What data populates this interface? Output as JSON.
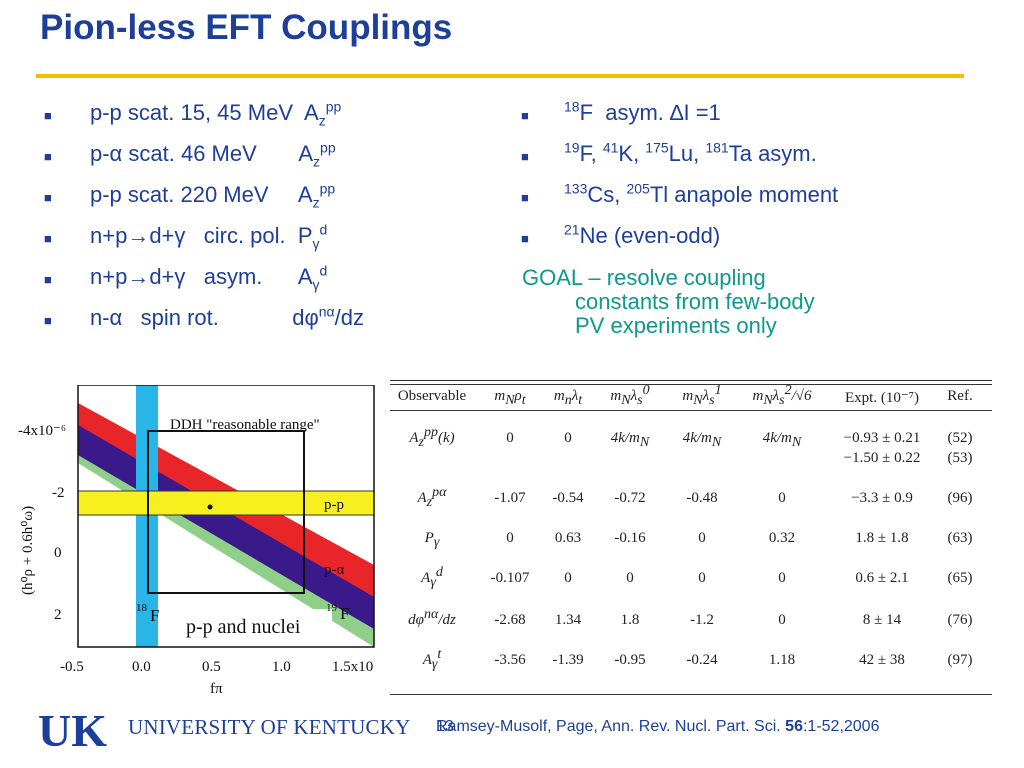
{
  "title": "Pion-less EFT Couplings",
  "left_items": [
    {
      "pre": "p-p scat. 15, 45 MeV  A",
      "sub": "z",
      "sup": "pp",
      "post": ""
    },
    {
      "pre": "p-α scat. 46 MeV       A",
      "sub": "z",
      "sup": "pp",
      "post": ""
    },
    {
      "pre": "p-p scat. 220 MeV     A",
      "sub": "z",
      "sup": "pp",
      "post": ""
    },
    {
      "pre": "n+p→d+γ   circ. pol.  P",
      "sub": "γ",
      "sup": "d",
      "post": ""
    },
    {
      "pre": "n+p→d+γ   asym.      A",
      "sub": "γ",
      "sup": "d",
      "post": ""
    },
    {
      "pre": "n-α   spin rot.            dφ",
      "sub": "",
      "sup": "nα",
      "post": "/dz"
    }
  ],
  "right_items": [
    {
      "html_parts": [
        {
          "sup": "18"
        },
        {
          "t": "F  asym. ∆I =1"
        }
      ]
    },
    {
      "html_parts": [
        {
          "sup": "19"
        },
        {
          "t": "F, "
        },
        {
          "sup": "41"
        },
        {
          "t": "K, "
        },
        {
          "sup": "175"
        },
        {
          "t": "Lu, "
        },
        {
          "sup": "181"
        },
        {
          "t": "Ta asym."
        }
      ]
    },
    {
      "html_parts": [
        {
          "sup": "133"
        },
        {
          "t": "Cs, "
        },
        {
          "sup": "205"
        },
        {
          "t": "Tl anapole moment"
        }
      ]
    },
    {
      "html_parts": [
        {
          "sup": "21"
        },
        {
          "t": "Ne (even-odd)"
        }
      ]
    }
  ],
  "bullet_glyph": "■",
  "goal": {
    "line1": "GOAL – resolve coupling",
    "line2": "constants from few-body",
    "line3": "PV experiments only"
  },
  "plot": {
    "box_label": "DDH \"reasonable range\"",
    "band_pp": "p-p",
    "band_pa": "p-α",
    "band_19f": "F",
    "band_19f_sup": "19",
    "band_18f": "F",
    "band_18f_sup": "18",
    "inset": "p-p and nuclei",
    "y_label": "(h⁰ρ + 0.6h⁰ω)",
    "y_ticks": [
      "-4x10⁻⁶",
      "-2",
      "0",
      "2"
    ],
    "x_ticks": [
      "-0.5",
      "0.0",
      "0.5",
      "1.0",
      "1.5x10"
    ],
    "x_label": "fπ"
  },
  "table": {
    "headers": [
      "Observable",
      "m_Nρ_t",
      "m_nλ_t",
      "m_Nλ_s^0",
      "m_Nλ_s^1",
      "m_Nλ_s^2/√6",
      "Expt. (10⁻⁷)",
      "Ref."
    ],
    "rows": [
      {
        "obs": "A_z^pp(k)",
        "c": [
          "0",
          "0",
          "4k/m_N",
          "4k/m_N",
          "4k/m_N"
        ],
        "expt": [
          "−0.93 ± 0.21",
          "−1.50 ± 0.22"
        ],
        "ref": [
          "(52)",
          "(53)"
        ]
      },
      {
        "obs": "A_z^pα",
        "c": [
          "-1.07",
          "-0.54",
          "-0.72",
          "-0.48",
          "0"
        ],
        "expt": [
          "−3.3 ± 0.9"
        ],
        "ref": [
          "(96)"
        ]
      },
      {
        "obs": "P_γ",
        "c": [
          "0",
          "0.63",
          "-0.16",
          "0",
          "0.32"
        ],
        "expt": [
          "1.8 ± 1.8"
        ],
        "ref": [
          "(63)"
        ]
      },
      {
        "obs": "A_γ^d",
        "c": [
          "-0.107",
          "0",
          "0",
          "0",
          "0"
        ],
        "expt": [
          "0.6 ± 2.1"
        ],
        "ref": [
          "(65)"
        ]
      },
      {
        "obs": "dφ^nα/dz",
        "c": [
          "-2.68",
          "1.34",
          "1.8",
          "-1.2",
          "0"
        ],
        "expt": [
          "8 ± 14"
        ],
        "ref": [
          "(76)"
        ]
      },
      {
        "obs": "A_γ^t",
        "c": [
          "-3.56",
          "-1.39",
          "-0.95",
          "-0.24",
          "1.18"
        ],
        "expt": [
          "42 ± 38"
        ],
        "ref": [
          "(97)"
        ]
      }
    ]
  },
  "footer": {
    "logo_text": "UK",
    "university": "UNIVERSITY OF KENTUCKY",
    "page_number": "13",
    "citation_pre": "Ramsey-Musolf, Page,  Ann. Rev. Nucl. Part. Sci. ",
    "citation_vol": "56",
    "citation_post": ":1-52,2006"
  },
  "colors": {
    "title": "#1e3f99",
    "rule": "#f5c000",
    "goal": "#0c9a8c",
    "band_yellow": "#f7f01e",
    "band_red": "#e8262a",
    "band_purple": "#3a1a8a",
    "band_green": "#8fcf8a",
    "band_cyan": "#29b5e8"
  }
}
